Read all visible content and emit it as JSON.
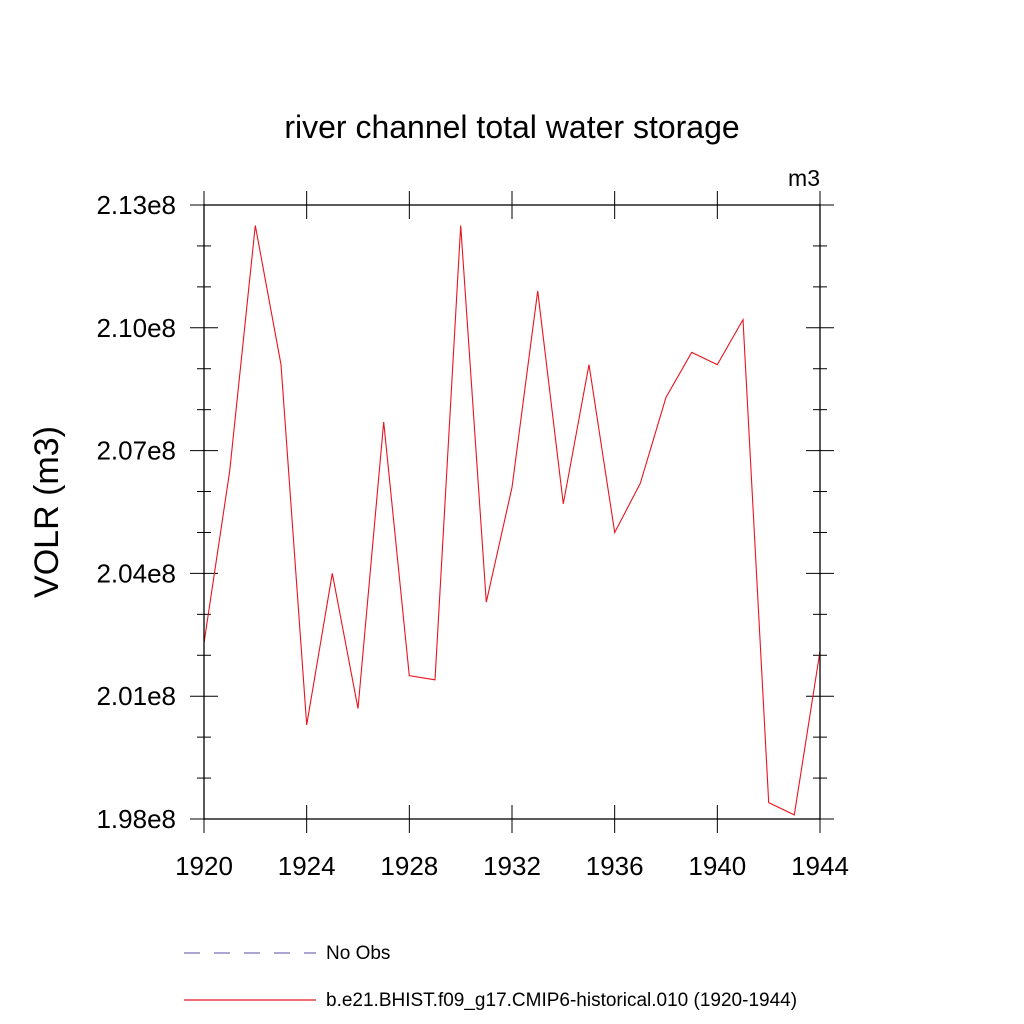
{
  "chart_data": {
    "type": "line",
    "title": "river channel total water storage",
    "units_label": "m3",
    "ylabel": "VOLR  (m3)",
    "xlabel": "",
    "xlim": [
      1920,
      1944
    ],
    "ylim": [
      198000000,
      213000000
    ],
    "x_ticks": [
      1920,
      1924,
      1928,
      1932,
      1936,
      1940,
      1944
    ],
    "x_tick_labels": [
      "1920",
      "1924",
      "1928",
      "1932",
      "1936",
      "1940",
      "1944"
    ],
    "y_ticks": [
      198000000,
      201000000,
      204000000,
      207000000,
      210000000,
      213000000
    ],
    "y_tick_labels": [
      "1.98e8",
      "2.01e8",
      "2.04e8",
      "2.07e8",
      "2.10e8",
      "2.13e8"
    ],
    "y_minor_step": 1000000,
    "grid": false,
    "legend_position": "bottom",
    "series": [
      {
        "name": "b.e21.BHIST.f09_g17.CMIP6-historical.010 (1920-1944)",
        "color": "#e8141e",
        "style": "solid",
        "x": [
          1920,
          1921,
          1922,
          1923,
          1924,
          1925,
          1926,
          1927,
          1928,
          1929,
          1930,
          1931,
          1932,
          1933,
          1934,
          1935,
          1936,
          1937,
          1938,
          1939,
          1940,
          1941,
          1942,
          1943,
          1944
        ],
        "values": [
          202300000,
          206500000,
          212500000,
          209100000,
          200300000,
          204000000,
          200700000,
          207700000,
          201500000,
          201400000,
          212500000,
          203300000,
          206100000,
          210900000,
          205700000,
          209100000,
          205000000,
          206200000,
          208300000,
          209400000,
          209100000,
          210200000,
          198400000,
          198100000,
          202100000
        ]
      },
      {
        "name": "No Obs",
        "color": "#7a70b8",
        "style": "dashed",
        "x": [],
        "values": []
      }
    ]
  }
}
